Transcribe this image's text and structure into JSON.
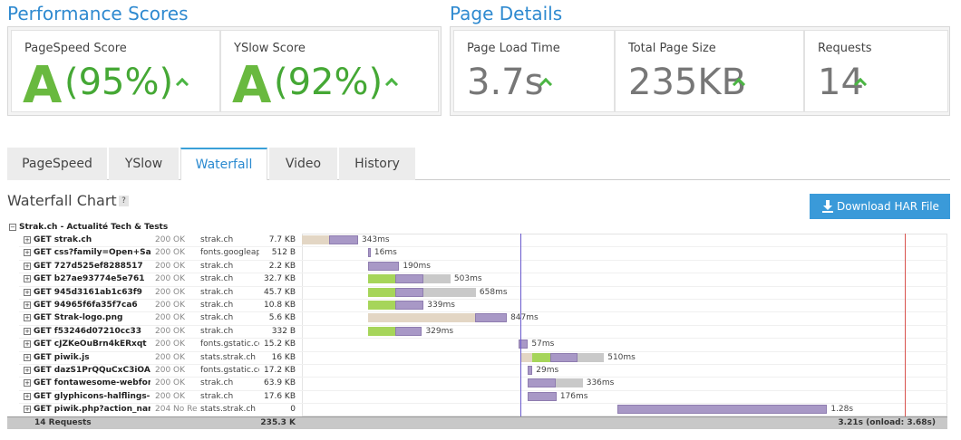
{
  "performance": {
    "title": "Performance Scores",
    "cards": [
      {
        "label": "PageSpeed Score",
        "grade": "A",
        "score": "(95%)"
      },
      {
        "label": "YSlow Score",
        "grade": "A",
        "score": "(92%)"
      }
    ]
  },
  "details": {
    "title": "Page Details",
    "cards": [
      {
        "label": "Page Load Time",
        "value": "3.7s"
      },
      {
        "label": "Total Page Size",
        "value": "235KB"
      },
      {
        "label": "Requests",
        "value": "14"
      }
    ]
  },
  "tabs": [
    "PageSpeed",
    "YSlow",
    "Waterfall",
    "Video",
    "History"
  ],
  "active_tab": 2,
  "waterfall": {
    "title": "Waterfall Chart",
    "help": "?",
    "download": "Download HAR File",
    "page": "Strak.ch - Actualité Tech & Tests",
    "timeline_ms": [
      0,
      3940
    ],
    "domload_ms": 1334,
    "onload_ms": 3680,
    "rows": [
      {
        "request": "GET strak.ch",
        "status": "200 OK",
        "domain": "strak.ch",
        "size": "7.7 KB",
        "start_ms": 0,
        "phases": [
          {
            "color": "#e3d6c4",
            "ms": 166
          },
          {
            "color": "#a898c6",
            "ms": 177
          }
        ],
        "time": "343ms"
      },
      {
        "request": "GET css?family=Open+Sa",
        "status": "200 OK",
        "domain": "fonts.googleapis",
        "size": "512 B",
        "start_ms": 404,
        "phases": [
          {
            "color": "#a898c6",
            "ms": 16
          }
        ],
        "time": "16ms"
      },
      {
        "request": "GET 727d525ef8288517",
        "status": "200 OK",
        "domain": "strak.ch",
        "size": "2.2 KB",
        "start_ms": 404,
        "phases": [
          {
            "color": "#a898c6",
            "ms": 190
          }
        ],
        "time": "190ms"
      },
      {
        "request": "GET b27ae93774e5e761",
        "status": "200 OK",
        "domain": "strak.ch",
        "size": "32.7 KB",
        "start_ms": 404,
        "phases": [
          {
            "color": "#a6d55a",
            "ms": 166
          },
          {
            "color": "#a898c6",
            "ms": 172
          },
          {
            "color": "#c9c9c9",
            "ms": 165
          }
        ],
        "time": "503ms"
      },
      {
        "request": "GET 945d3161ab1c63f9",
        "status": "200 OK",
        "domain": "strak.ch",
        "size": "45.7 KB",
        "start_ms": 404,
        "phases": [
          {
            "color": "#a6d55a",
            "ms": 166
          },
          {
            "color": "#a898c6",
            "ms": 172
          },
          {
            "color": "#c9c9c9",
            "ms": 320
          }
        ],
        "time": "658ms"
      },
      {
        "request": "GET 94965f6fa35f7ca6",
        "status": "200 OK",
        "domain": "strak.ch",
        "size": "10.8 KB",
        "start_ms": 404,
        "phases": [
          {
            "color": "#a6d55a",
            "ms": 166
          },
          {
            "color": "#a898c6",
            "ms": 173
          }
        ],
        "time": "339ms"
      },
      {
        "request": "GET Strak-logo.png",
        "status": "200 OK",
        "domain": "strak.ch",
        "size": "5.6 KB",
        "start_ms": 404,
        "phases": [
          {
            "color": "#e3d6c4",
            "ms": 653
          },
          {
            "color": "#a898c6",
            "ms": 194
          }
        ],
        "time": "847ms"
      },
      {
        "request": "GET f53246d07210cc33",
        "status": "200 OK",
        "domain": "strak.ch",
        "size": "332 B",
        "start_ms": 404,
        "phases": [
          {
            "color": "#a6d55a",
            "ms": 166
          },
          {
            "color": "#a898c6",
            "ms": 163
          }
        ],
        "time": "329ms"
      },
      {
        "request": "GET cJZKeOuBrn4kERxqt",
        "status": "200 OK",
        "domain": "fonts.gstatic.com",
        "size": "15.2 KB",
        "start_ms": 1323,
        "phases": [
          {
            "color": "#a898c6",
            "ms": 57
          }
        ],
        "time": "57ms"
      },
      {
        "request": "GET piwik.js",
        "status": "200 OK",
        "domain": "stats.strak.ch",
        "size": "16 KB",
        "start_ms": 1334,
        "phases": [
          {
            "color": "#e3d6c4",
            "ms": 72
          },
          {
            "color": "#a6d55a",
            "ms": 111
          },
          {
            "color": "#a898c6",
            "ms": 166
          },
          {
            "color": "#c9c9c9",
            "ms": 161
          }
        ],
        "time": "510ms"
      },
      {
        "request": "GET dazS1PrQQuCxC3iOA",
        "status": "200 OK",
        "domain": "fonts.gstatic.com",
        "size": "17.2 KB",
        "start_ms": 1378,
        "phases": [
          {
            "color": "#a898c6",
            "ms": 29
          }
        ],
        "time": "29ms"
      },
      {
        "request": "GET fontawesome-webfon",
        "status": "200 OK",
        "domain": "strak.ch",
        "size": "63.9 KB",
        "start_ms": 1378,
        "phases": [
          {
            "color": "#a898c6",
            "ms": 172
          },
          {
            "color": "#c9c9c9",
            "ms": 164
          }
        ],
        "time": "336ms"
      },
      {
        "request": "GET glyphicons-halflings-r",
        "status": "200 OK",
        "domain": "strak.ch",
        "size": "17.6 KB",
        "start_ms": 1378,
        "phases": [
          {
            "color": "#a898c6",
            "ms": 176
          }
        ],
        "time": "176ms"
      },
      {
        "request": "GET piwik.php?action_nar",
        "status": "204 No Re",
        "domain": "stats.strak.ch",
        "size": "0",
        "start_ms": 1926,
        "phases": [
          {
            "color": "#a898c6",
            "ms": 1280
          }
        ],
        "time": "1.28s"
      }
    ],
    "footer": {
      "requests": "14 Requests",
      "size": "235.3 K",
      "time": "3.21s (onload: 3.68s)"
    }
  }
}
